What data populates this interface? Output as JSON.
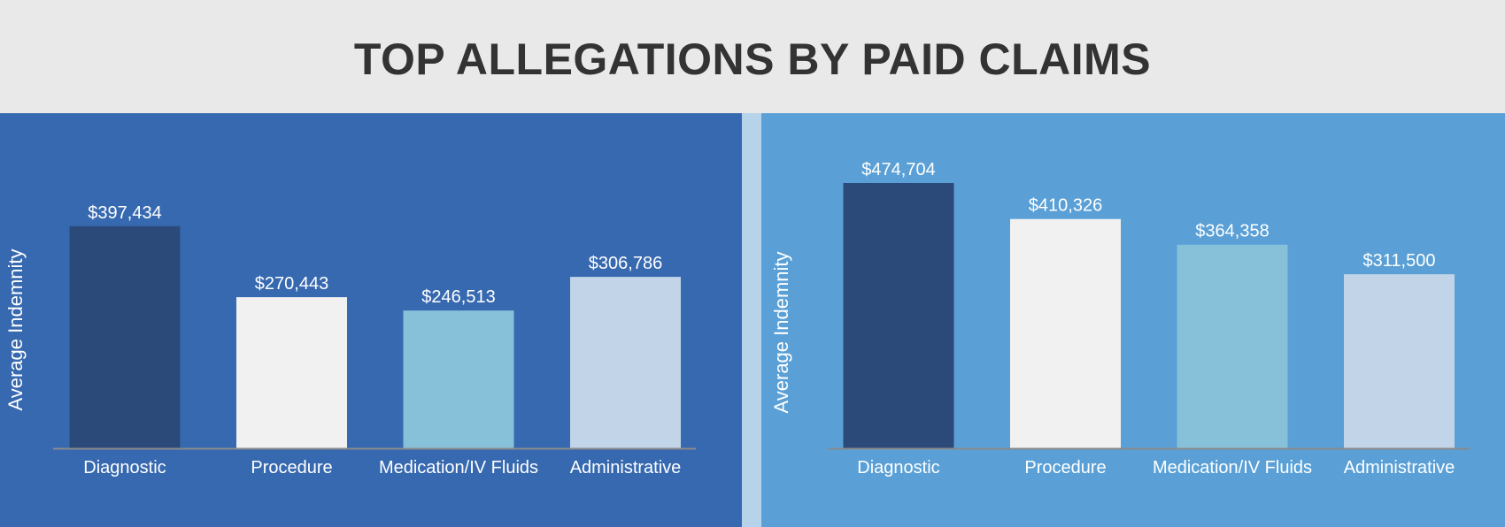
{
  "title": "TOP ALLEGATIONS BY PAID CLAIMS",
  "chart_data": [
    {
      "type": "bar",
      "ylabel": "Average Indemnity",
      "categories": [
        "Diagnostic",
        "Procedure",
        "Medication/IV Fluids",
        "Administrative"
      ],
      "values": [
        397434,
        270443,
        246513,
        306786
      ],
      "value_labels": [
        "$397,434",
        "$270,443",
        "$246,513",
        "$306,786"
      ],
      "bar_colors": [
        "#2b4a7a",
        "#f1f1f1",
        "#87c1d9",
        "#c1d4e8"
      ],
      "background": "#3769b0",
      "grid": false
    },
    {
      "type": "bar",
      "ylabel": "Average Indemnity",
      "categories": [
        "Diagnostic",
        "Procedure",
        "Medication/IV Fluids",
        "Administrative"
      ],
      "values": [
        474704,
        410326,
        364358,
        311500
      ],
      "value_labels": [
        "$474,704",
        "$410,326",
        "$364,358",
        "$311,500"
      ],
      "bar_colors": [
        "#2b4a7a",
        "#f1f1f1",
        "#87c1d9",
        "#c1d4e8"
      ],
      "background": "#5aa0d6",
      "grid": false
    }
  ]
}
